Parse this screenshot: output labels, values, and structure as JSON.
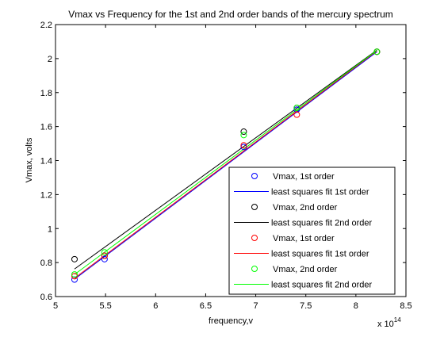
{
  "chart_data": {
    "type": "scatter",
    "title": "Vmax vs Frequency for the 1st and 2nd order bands of the mercury spectrum",
    "xlabel": "frequency,v",
    "ylabel": "Vmax, volts",
    "x_exponent_label": "x 10",
    "x_exponent_power": "14",
    "xlim": [
      5,
      8.5
    ],
    "ylim": [
      0.6,
      2.2
    ],
    "x_ticks": [
      5,
      5.5,
      6,
      6.5,
      7,
      7.5,
      8,
      8.5
    ],
    "x_tick_labels": [
      "5",
      "5.5",
      "6",
      "6.5",
      "7",
      "7.5",
      "8",
      "8.5"
    ],
    "y_ticks": [
      0.6,
      0.8,
      1.0,
      1.2,
      1.4,
      1.6,
      1.8,
      2.0,
      2.2
    ],
    "y_tick_labels": [
      "0.6",
      "0.8",
      "1",
      "1.2",
      "1.4",
      "1.6",
      "1.8",
      "2",
      "2.2"
    ],
    "grid": false,
    "legend_position": "bottom-right",
    "series": [
      {
        "name": "Vmax, 1st order",
        "kind": "markers",
        "marker": "circle",
        "color": "#0000ff",
        "x": [
          5.19,
          5.49,
          6.88,
          7.41,
          8.21
        ],
        "y": [
          0.7,
          0.82,
          1.48,
          1.7,
          2.04
        ]
      },
      {
        "name": "least squares fit 1st order",
        "kind": "line",
        "color": "#0000ff",
        "x": [
          5.19,
          8.21
        ],
        "y": [
          0.702,
          2.04
        ]
      },
      {
        "name": "Vmax, 2nd order",
        "kind": "markers",
        "marker": "circle",
        "color": "#000000",
        "x": [
          5.19,
          5.49,
          6.88,
          7.41,
          8.21
        ],
        "y": [
          0.82,
          0.84,
          1.57,
          1.71,
          2.04
        ]
      },
      {
        "name": "least squares fit 2nd order",
        "kind": "line",
        "color": "#000000",
        "x": [
          5.19,
          8.21
        ],
        "y": [
          0.762,
          2.05
        ]
      },
      {
        "name": "Vmax, 1st order",
        "kind": "markers",
        "marker": "circle",
        "color": "#ff0000",
        "x": [
          5.19,
          5.49,
          6.88,
          7.41,
          8.21
        ],
        "y": [
          0.72,
          0.84,
          1.49,
          1.67,
          2.04
        ]
      },
      {
        "name": "least squares fit 1st order",
        "kind": "line",
        "color": "#ff0000",
        "x": [
          5.19,
          8.21
        ],
        "y": [
          0.708,
          2.045
        ]
      },
      {
        "name": "Vmax, 2nd order",
        "kind": "markers",
        "marker": "circle",
        "color": "#00ff00",
        "x": [
          5.19,
          5.49,
          6.88,
          7.41,
          8.21
        ],
        "y": [
          0.73,
          0.86,
          1.55,
          1.71,
          2.04
        ]
      },
      {
        "name": "least squares fit 2nd order",
        "kind": "line",
        "color": "#00ff00",
        "x": [
          5.19,
          8.21
        ],
        "y": [
          0.73,
          2.048
        ]
      }
    ]
  }
}
